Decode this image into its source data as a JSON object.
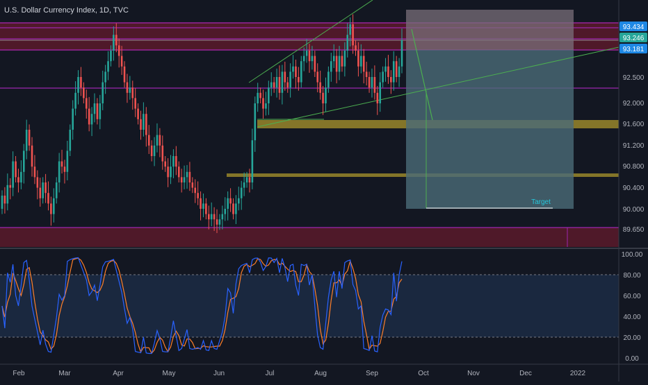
{
  "chart_data": {
    "type": "candlestick",
    "title": "U.S. Dollar Currency Index, 1D, TVC",
    "x_tick_labels": [
      "Feb",
      "Mar",
      "Apr",
      "May",
      "Jun",
      "Jul",
      "Aug",
      "Sep",
      "Oct",
      "Nov",
      "Dec",
      "2022"
    ],
    "price_axis": {
      "ticks": [
        "92.500",
        "92.000",
        "91.600",
        "91.200",
        "90.800",
        "90.400",
        "90.000",
        "89.650"
      ],
      "range": [
        89.4,
        93.65
      ]
    },
    "price_badges": [
      {
        "label": "93.434",
        "value": 93.434,
        "color": "#1e88e5"
      },
      {
        "label": "93.246",
        "value": 93.246,
        "color": "#26a69a"
      },
      {
        "label": "93.181",
        "value": 93.181,
        "color": "#1e88e5"
      }
    ],
    "close_series": [
      90.25,
      90.1,
      90.45,
      90.4,
      90.9,
      90.6,
      90.5,
      90.7,
      91.1,
      91.5,
      91.2,
      90.8,
      90.6,
      90.4,
      90.2,
      90.5,
      90.3,
      90.1,
      89.9,
      90.2,
      90.5,
      90.9,
      90.8,
      90.7,
      91.1,
      91.5,
      91.9,
      92.2,
      92.5,
      92.3,
      92.1,
      91.9,
      91.6,
      91.8,
      92.0,
      91.7,
      92.0,
      92.4,
      92.6,
      92.8,
      93.0,
      93.3,
      93.1,
      92.9,
      92.7,
      92.4,
      92.2,
      92.3,
      92.1,
      91.9,
      91.7,
      91.5,
      91.8,
      91.4,
      91.2,
      91.0,
      91.2,
      91.4,
      91.2,
      90.9,
      90.8,
      90.6,
      90.8,
      91.0,
      90.8,
      90.6,
      90.5,
      90.6,
      90.7,
      90.5,
      90.4,
      90.3,
      90.2,
      90.0,
      90.1,
      89.9,
      89.8,
      89.9,
      89.8,
      89.7,
      89.8,
      89.9,
      90.0,
      90.2,
      90.1,
      89.9,
      90.1,
      90.2,
      90.4,
      90.5,
      90.6,
      90.5,
      91.3,
      92.0,
      92.2,
      92.1,
      91.9,
      92.0,
      92.3,
      92.4,
      92.3,
      92.5,
      92.2,
      92.6,
      92.4,
      92.3,
      92.6,
      92.7,
      92.5,
      92.4,
      92.8,
      92.9,
      93.0,
      92.8,
      92.9,
      92.6,
      92.4,
      92.2,
      92.0,
      92.3,
      92.6,
      92.8,
      92.9,
      92.6,
      92.9,
      92.7,
      93.0,
      93.3,
      93.5,
      93.1,
      93.0,
      92.7,
      92.9,
      92.6,
      92.5,
      92.3,
      92.5,
      92.2,
      92.0,
      92.4,
      92.6,
      92.7,
      92.5,
      92.4,
      92.8,
      92.5,
      92.7,
      93.2
    ],
    "range_label": "Target",
    "stochastic": {
      "ticks": [
        "100.00",
        "80.00",
        "60.00",
        "40.00",
        "20.00",
        "0.00"
      ],
      "range": [
        0,
        100
      ],
      "band": [
        20,
        80
      ]
    }
  }
}
